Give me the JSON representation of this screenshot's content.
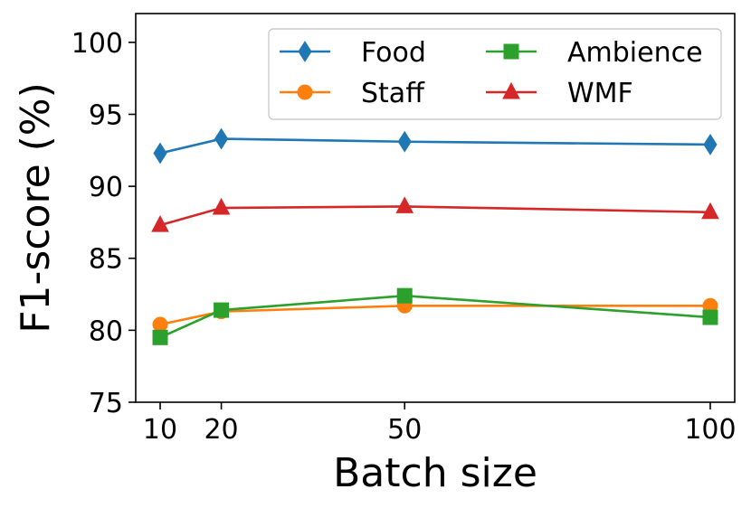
{
  "chart_data": {
    "type": "line",
    "title": "",
    "xlabel": "Batch size",
    "ylabel": "F1-score (%)",
    "x": [
      10,
      20,
      50,
      100
    ],
    "xlim": [
      6,
      104
    ],
    "ylim": [
      75,
      102
    ],
    "xticks": [
      10,
      20,
      50,
      100
    ],
    "yticks": [
      75,
      80,
      85,
      90,
      95,
      100
    ],
    "grid": false,
    "legend_location": "top-right",
    "series": [
      {
        "name": "Food",
        "values": [
          92.3,
          93.3,
          93.1,
          92.9
        ],
        "color": "#1f77b4",
        "marker": "diamond"
      },
      {
        "name": "Staff",
        "values": [
          80.4,
          81.3,
          81.7,
          81.7
        ],
        "color": "#ff7f0e",
        "marker": "circle"
      },
      {
        "name": "Ambience",
        "values": [
          79.5,
          81.4,
          82.4,
          80.9
        ],
        "color": "#2ca02c",
        "marker": "square"
      },
      {
        "name": "WMF",
        "values": [
          87.3,
          88.5,
          88.6,
          88.2
        ],
        "color": "#d62728",
        "marker": "triangle"
      }
    ]
  }
}
